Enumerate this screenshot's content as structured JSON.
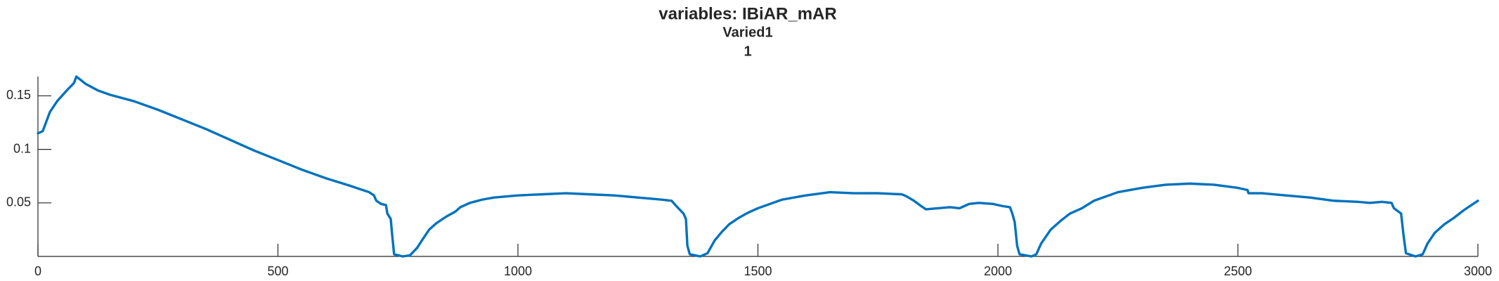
{
  "chart_data": {
    "type": "line",
    "title": [
      "variables: IBiAR_mAR",
      "Varied1",
      "1"
    ],
    "color": "#0072bd",
    "xlim": [
      0,
      3000
    ],
    "ylim": [
      0,
      0.168
    ],
    "xticks": [
      0,
      500,
      1000,
      1500,
      2000,
      2500,
      3000
    ],
    "yticks": [
      0.05,
      0.1,
      0.15
    ],
    "grid": false,
    "x": [
      0,
      10,
      25,
      40,
      60,
      75,
      80,
      100,
      125,
      150,
      200,
      250,
      300,
      350,
      400,
      450,
      500,
      550,
      600,
      650,
      690,
      700,
      705,
      715,
      725,
      728,
      735,
      738,
      742,
      760,
      775,
      790,
      800,
      815,
      830,
      850,
      870,
      880,
      900,
      925,
      950,
      1000,
      1050,
      1100,
      1150,
      1200,
      1250,
      1300,
      1320,
      1330,
      1345,
      1350,
      1353,
      1358,
      1380,
      1395,
      1410,
      1425,
      1440,
      1460,
      1480,
      1500,
      1525,
      1550,
      1600,
      1650,
      1700,
      1750,
      1800,
      1810,
      1825,
      1840,
      1850,
      1875,
      1900,
      1920,
      1940,
      1960,
      1990,
      2000,
      2010,
      2025,
      2030,
      2035,
      2040,
      2045,
      2070,
      2080,
      2090,
      2110,
      2130,
      2150,
      2175,
      2200,
      2250,
      2300,
      2350,
      2400,
      2450,
      2500,
      2520,
      2522,
      2550,
      2600,
      2650,
      2700,
      2750,
      2775,
      2800,
      2820,
      2825,
      2840,
      2845,
      2850,
      2870,
      2885,
      2895,
      2910,
      2930,
      2950,
      2970,
      2990,
      3000
    ],
    "values": [
      0.115,
      0.117,
      0.135,
      0.145,
      0.155,
      0.162,
      0.168,
      0.161,
      0.155,
      0.151,
      0.145,
      0.137,
      0.128,
      0.119,
      0.109,
      0.099,
      0.09,
      0.081,
      0.073,
      0.066,
      0.06,
      0.057,
      0.052,
      0.049,
      0.048,
      0.04,
      0.035,
      0.02,
      0.002,
      0.0,
      0.001,
      0.008,
      0.015,
      0.025,
      0.031,
      0.037,
      0.042,
      0.046,
      0.05,
      0.053,
      0.055,
      0.057,
      0.058,
      0.059,
      0.058,
      0.057,
      0.055,
      0.053,
      0.052,
      0.047,
      0.04,
      0.035,
      0.01,
      0.002,
      0.0,
      0.003,
      0.015,
      0.023,
      0.03,
      0.036,
      0.041,
      0.045,
      0.049,
      0.053,
      0.057,
      0.06,
      0.059,
      0.059,
      0.058,
      0.056,
      0.052,
      0.047,
      0.044,
      0.045,
      0.046,
      0.045,
      0.049,
      0.05,
      0.049,
      0.048,
      0.047,
      0.046,
      0.04,
      0.032,
      0.01,
      0.002,
      0.0,
      0.002,
      0.012,
      0.025,
      0.033,
      0.04,
      0.045,
      0.052,
      0.06,
      0.064,
      0.067,
      0.068,
      0.067,
      0.064,
      0.062,
      0.059,
      0.059,
      0.057,
      0.055,
      0.052,
      0.051,
      0.05,
      0.051,
      0.05,
      0.045,
      0.04,
      0.02,
      0.003,
      0.0,
      0.002,
      0.012,
      0.022,
      0.03,
      0.036,
      0.043,
      0.049,
      0.052
    ]
  }
}
